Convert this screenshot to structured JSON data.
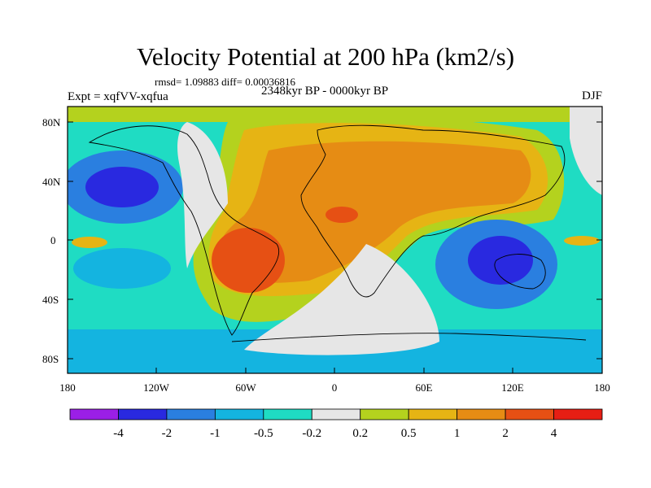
{
  "title": "Velocity Potential at 200 hPa (km2/s)",
  "stats": "rmsd= 1.09883 diff= 0.00036816",
  "expt": "Expt = xqfVV-xqfua",
  "period": "2348kyr BP - 0000kyr BP",
  "season": "DJF",
  "lat_ticks": [
    "80N",
    "40N",
    "0",
    "40S",
    "80S"
  ],
  "lon_ticks": [
    "180",
    "120W",
    "60W",
    "0",
    "60E",
    "120E",
    "180"
  ],
  "colorbar": {
    "colors": [
      "#9b1fe6",
      "#2929e0",
      "#2a7fe0",
      "#14b4e0",
      "#1fdcc3",
      "#e6e6e6",
      "#b4d21e",
      "#e6b414",
      "#e68c14",
      "#e65014",
      "#e61e14"
    ],
    "labels": [
      "-4",
      "-2",
      "-1",
      "-0.5",
      "-0.2",
      "0.2",
      "0.5",
      "1",
      "2",
      "4"
    ]
  }
}
